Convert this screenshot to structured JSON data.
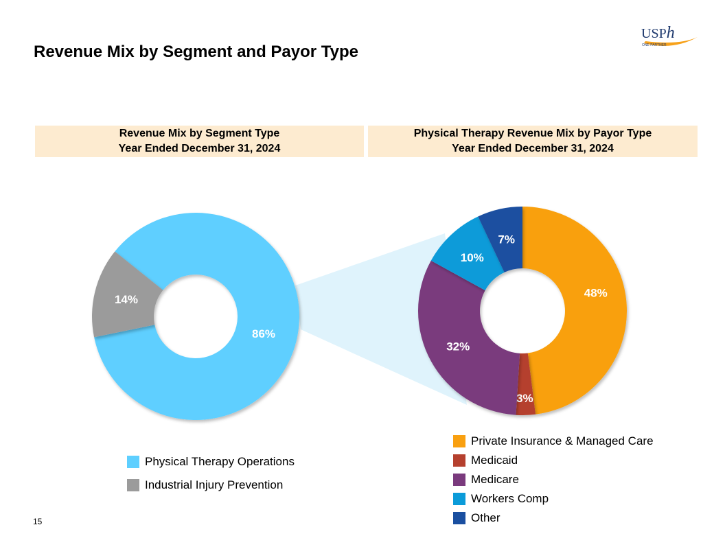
{
  "page": {
    "title": "Revenue Mix by Segment and Payor Type",
    "page_number": "15"
  },
  "logo": {
    "text": "USPh",
    "subtext": "ONE PARTNER",
    "accent_color": "#f7a21b",
    "text_color": "#1f3a6e"
  },
  "chart_data": [
    {
      "type": "pie",
      "title": "Revenue Mix by Segment Type",
      "subtitle": "Year Ended December 31, 2024",
      "donut": true,
      "series": [
        {
          "name": "Physical Therapy Operations",
          "value": 86,
          "label": "86%",
          "color": "#5ecfff"
        },
        {
          "name": "Industrial Injury Prevention",
          "value": 14,
          "label": "14%",
          "color": "#9b9b9b"
        }
      ],
      "legend_placement": "bottom"
    },
    {
      "type": "pie",
      "title": "Physical Therapy Revenue Mix by Payor Type",
      "subtitle": "Year Ended December 31, 2024",
      "donut": true,
      "series": [
        {
          "name": "Private Insurance & Managed Care",
          "value": 48,
          "label": "48%",
          "color": "#f9a010"
        },
        {
          "name": "Medicaid",
          "value": 3,
          "label": "3%",
          "color": "#b5402e"
        },
        {
          "name": "Medicare",
          "value": 32,
          "label": "32%",
          "color": "#7a3a7d"
        },
        {
          "name": "Workers Comp",
          "value": 10,
          "label": "10%",
          "color": "#0b9bd9"
        },
        {
          "name": "Other",
          "value": 7,
          "label": "7%",
          "color": "#1a4fa0"
        }
      ],
      "legend_placement": "bottom"
    }
  ]
}
